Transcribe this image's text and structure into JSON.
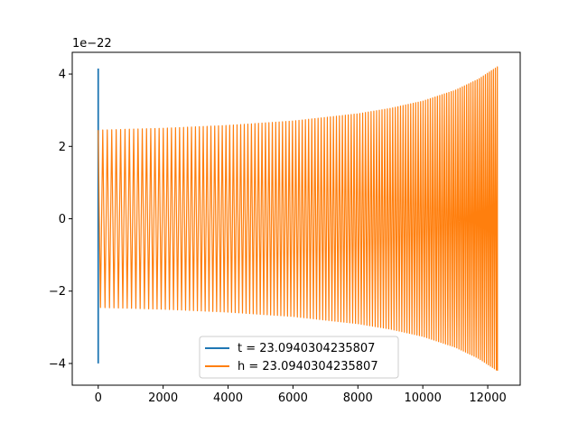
{
  "chart_data": {
    "type": "line",
    "title": "",
    "xlabel": "",
    "ylabel": "",
    "y_offset_label": "1e−22",
    "xlim": [
      -800,
      13000
    ],
    "ylim": [
      -4.6,
      4.6
    ],
    "x_ticks": [
      0,
      2000,
      4000,
      6000,
      8000,
      10000,
      12000
    ],
    "x_tick_labels": [
      "0",
      "2000",
      "4000",
      "6000",
      "8000",
      "10000",
      "12000"
    ],
    "y_ticks": [
      -4,
      -2,
      0,
      2,
      4
    ],
    "y_tick_labels": [
      "−4",
      "−2",
      "0",
      "2",
      "4"
    ],
    "grid": false,
    "legend_position": "lower center",
    "series": [
      {
        "name": "t = 23.0940304235807",
        "color": "#1f77b4",
        "x": [
          0,
          0,
          0,
          0,
          0
        ],
        "y": [
          0,
          4.15,
          -4.0,
          2.4,
          -2.4
        ]
      },
      {
        "name": "h = 23.0940304235807",
        "color": "#ff7f0e",
        "x_start": 0,
        "x_end": 12300,
        "envelope": [
          {
            "x": 0,
            "amp": 2.45
          },
          {
            "x": 2000,
            "amp": 2.5
          },
          {
            "x": 4000,
            "amp": 2.58
          },
          {
            "x": 6000,
            "amp": 2.7
          },
          {
            "x": 8000,
            "amp": 2.9
          },
          {
            "x": 9000,
            "amp": 3.05
          },
          {
            "x": 10000,
            "amp": 3.25
          },
          {
            "x": 11000,
            "amp": 3.55
          },
          {
            "x": 11700,
            "amp": 3.85
          },
          {
            "x": 12300,
            "amp": 4.2
          }
        ],
        "start_period": 140,
        "end_period": 60
      }
    ]
  }
}
